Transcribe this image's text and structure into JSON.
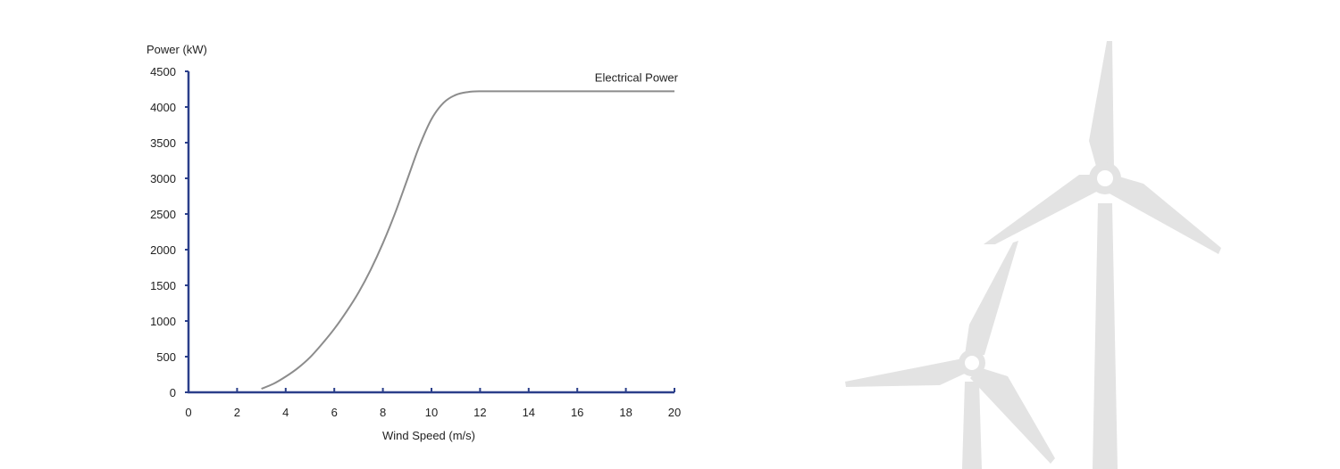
{
  "colors": {
    "axis": "#2b3f8a",
    "curve": "#8c8c8c",
    "turbine": "#e3e3e3",
    "text": "#222222"
  },
  "decoration": {
    "icon": "wind-turbines-icon"
  },
  "chart_data": {
    "type": "line",
    "title": "",
    "xlabel": "Wind Speed (m/s)",
    "ylabel": "Power (kW)",
    "xlim": [
      0,
      20
    ],
    "ylim": [
      0,
      4500
    ],
    "x_ticks": [
      "0",
      "2",
      "4",
      "6",
      "8",
      "10",
      "12",
      "14",
      "16",
      "18",
      "20"
    ],
    "y_ticks": [
      "0",
      "500",
      "1000",
      "1500",
      "2000",
      "2500",
      "3000",
      "3500",
      "4000",
      "4500"
    ],
    "grid": false,
    "series": [
      {
        "name": "Electrical Power",
        "x": [
          3,
          3.5,
          4,
          4.5,
          5,
          5.5,
          6,
          6.5,
          7,
          7.5,
          8,
          8.5,
          9,
          9.5,
          10,
          10.5,
          11,
          11.5,
          12,
          13,
          14,
          16,
          18,
          20
        ],
        "y": [
          50,
          120,
          220,
          340,
          490,
          680,
          890,
          1130,
          1400,
          1720,
          2090,
          2510,
          2980,
          3450,
          3830,
          4060,
          4170,
          4210,
          4220,
          4220,
          4220,
          4220,
          4220,
          4220
        ]
      }
    ]
  }
}
